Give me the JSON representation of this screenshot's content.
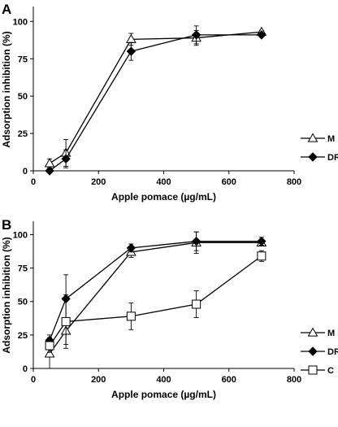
{
  "chart_data": [
    {
      "type": "line",
      "panel": "A",
      "xlabel": "Apple pomace (µg/mL)",
      "ylabel": "Adsorption inhibition (%)",
      "xlim": [
        0,
        800
      ],
      "ylim": [
        0,
        110
      ],
      "xticks": [
        0,
        200,
        400,
        600,
        800
      ],
      "yticks": [
        0,
        25,
        50,
        75,
        100
      ],
      "legend_position": "right",
      "series": [
        {
          "name": "M",
          "marker": "triangle-open",
          "x": [
            50,
            100,
            300,
            500,
            700
          ],
          "y": [
            5,
            12,
            88,
            89,
            93
          ],
          "err": [
            3,
            9,
            4,
            5,
            1
          ]
        },
        {
          "name": "DR",
          "marker": "diamond-filled",
          "x": [
            50,
            100,
            300,
            500,
            700
          ],
          "y": [
            0,
            8,
            80,
            91,
            91
          ],
          "err": [
            0,
            6,
            6,
            6,
            1
          ]
        }
      ]
    },
    {
      "type": "line",
      "panel": "B",
      "xlabel": "Apple pomace (µg/mL)",
      "ylabel": "Adsorption inhibition (%)",
      "xlim": [
        0,
        800
      ],
      "ylim": [
        0,
        110
      ],
      "xticks": [
        0,
        200,
        400,
        600,
        800
      ],
      "yticks": [
        0,
        25,
        50,
        75,
        100
      ],
      "legend_position": "right",
      "series": [
        {
          "name": "M",
          "marker": "triangle-open",
          "x": [
            50,
            100,
            300,
            500,
            700
          ],
          "y": [
            11,
            28,
            87,
            94,
            94
          ],
          "err": [
            12,
            10,
            4,
            8,
            2
          ]
        },
        {
          "name": "DR",
          "marker": "diamond-filled",
          "x": [
            50,
            100,
            300,
            500,
            700
          ],
          "y": [
            21,
            52,
            90,
            95,
            95
          ],
          "err": [
            4,
            18,
            3,
            7,
            3
          ]
        },
        {
          "name": "C",
          "marker": "square-open",
          "x": [
            50,
            100,
            300,
            500,
            700
          ],
          "y": [
            17,
            35,
            39,
            48,
            84
          ],
          "err": [
            5,
            20,
            10,
            10,
            4
          ]
        }
      ]
    }
  ]
}
